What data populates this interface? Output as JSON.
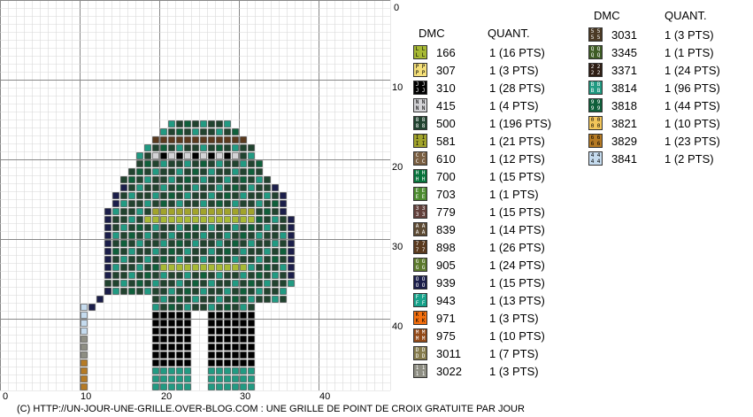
{
  "axis": {
    "x_ticks": [
      "0",
      "10",
      "20",
      "30",
      "40"
    ],
    "y_ticks": [
      "0",
      "10",
      "20",
      "30",
      "40"
    ]
  },
  "legend": {
    "col1_header_code": "DMC",
    "col1_header_qty": "QUANT.",
    "col2_header_code": "DMC",
    "col2_header_qty": "QUANT.",
    "col1": [
      {
        "code": "166",
        "qty": "1 (16 PTS)",
        "sym": "L",
        "color": "#a7b934"
      },
      {
        "code": "307",
        "qty": "1 (3 PTS)",
        "sym": "P",
        "color": "#f5e07a"
      },
      {
        "code": "310",
        "qty": "1 (28 PTS)",
        "sym": "J",
        "color": "#000000"
      },
      {
        "code": "415",
        "qty": "1 (4 PTS)",
        "sym": "N",
        "color": "#d3d3d6"
      },
      {
        "code": "500",
        "qty": "1 (196 PTS)",
        "sym": "8",
        "color": "#21432f"
      },
      {
        "code": "581",
        "qty": "1 (21 PTS)",
        "sym": "I",
        "color": "#a1a32b"
      },
      {
        "code": "610",
        "qty": "1 (12 PTS)",
        "sym": "C",
        "color": "#7b6043"
      },
      {
        "code": "700",
        "qty": "1 (15 PTS)",
        "sym": "H",
        "color": "#07733b"
      },
      {
        "code": "703",
        "qty": "1 (1 PTS)",
        "sym": "E",
        "color": "#4b8b2e"
      },
      {
        "code": "779",
        "qty": "1 (15 PTS)",
        "sym": "3",
        "color": "#62403b"
      },
      {
        "code": "839",
        "qty": "1 (14 PTS)",
        "sym": "A",
        "color": "#5e4b34"
      },
      {
        "code": "898",
        "qty": "1 (26 PTS)",
        "sym": "7",
        "color": "#5a3a1e"
      },
      {
        "code": "905",
        "qty": "1 (24 PTS)",
        "sym": "G",
        "color": "#5c7a2c"
      },
      {
        "code": "939",
        "qty": "1 (15 PTS)",
        "sym": "O",
        "color": "#1b1e4a"
      },
      {
        "code": "943",
        "qty": "1 (13 PTS)",
        "sym": "F",
        "color": "#17a28a"
      },
      {
        "code": "971",
        "qty": "1 (3 PTS)",
        "sym": "K",
        "color": "#f6700e"
      },
      {
        "code": "975",
        "qty": "1 (10 PTS)",
        "sym": "M",
        "color": "#934a18"
      },
      {
        "code": "3011",
        "qty": "1 (7 PTS)",
        "sym": "D",
        "color": "#867c4d"
      },
      {
        "code": "3022",
        "qty": "1 (3 PTS)",
        "sym": "1",
        "color": "#8e8e83"
      }
    ],
    "col2": [
      {
        "code": "3031",
        "qty": "1 (3 PTS)",
        "sym": "5",
        "color": "#4b3a25"
      },
      {
        "code": "3345",
        "qty": "1 (1 PTS)",
        "sym": "Q",
        "color": "#3f5d25"
      },
      {
        "code": "3371",
        "qty": "1 (24 PTS)",
        "sym": "2",
        "color": "#2f1f15"
      },
      {
        "code": "3814",
        "qty": "1 (96 PTS)",
        "sym": "B",
        "color": "#219a82"
      },
      {
        "code": "3818",
        "qty": "1 (44 PTS)",
        "sym": "9",
        "color": "#0f5f3b"
      },
      {
        "code": "3821",
        "qty": "1 (10 PTS)",
        "sym": "0",
        "color": "#f2c55a"
      },
      {
        "code": "3829",
        "qty": "1 (23 PTS)",
        "sym": "6",
        "color": "#b57a24"
      },
      {
        "code": "3841",
        "qty": "1 (2 PTS)",
        "sym": "4",
        "color": "#c5dbee"
      }
    ]
  },
  "footer": "(C) HTTP://UN-JOUR-UNE-GRILLE.OVER-BLOG.COM : UNE GRILLE DE POINT DE CROIX GRATUITE PAR JOUR"
}
